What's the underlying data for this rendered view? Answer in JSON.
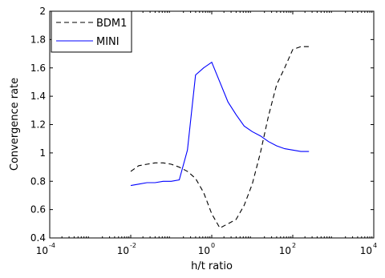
{
  "chart_data": {
    "type": "line",
    "title": "",
    "xlabel": "h/t ratio",
    "ylabel": "Convergence rate",
    "xscale": "log",
    "xlim": [
      0.0001,
      10000
    ],
    "ylim": [
      0.4,
      2
    ],
    "grid": false,
    "legend_position": "top-left",
    "x_ticks": [
      {
        "base": "10",
        "exp": "-4",
        "value": 0.0001
      },
      {
        "base": "10",
        "exp": "-2",
        "value": 0.01
      },
      {
        "base": "10",
        "exp": "0",
        "value": 1
      },
      {
        "base": "10",
        "exp": "2",
        "value": 100
      },
      {
        "base": "10",
        "exp": "4",
        "value": 10000
      }
    ],
    "y_ticks": [
      "0.4",
      "0.6",
      "0.8",
      "1",
      "1.2",
      "1.4",
      "1.6",
      "1.8",
      "2"
    ],
    "x": [
      0.01,
      0.0158,
      0.0251,
      0.0398,
      0.0631,
      0.1,
      0.158,
      0.251,
      0.398,
      0.631,
      1.0,
      1.585,
      2.512,
      3.981,
      6.31,
      10.0,
      15.85,
      25.12,
      39.81,
      63.1,
      100.0,
      158.5,
      251.2
    ],
    "series": [
      {
        "name": "BDM1",
        "color": "#000000",
        "dash": "dashed",
        "values": [
          0.87,
          0.91,
          0.92,
          0.93,
          0.93,
          0.92,
          0.9,
          0.87,
          0.82,
          0.72,
          0.57,
          0.47,
          0.5,
          0.53,
          0.63,
          0.78,
          1.0,
          1.26,
          1.48,
          1.6,
          1.73,
          1.75,
          1.75
        ]
      },
      {
        "name": "MINI",
        "color": "#0000ff",
        "dash": "solid",
        "values": [
          0.77,
          0.78,
          0.79,
          0.79,
          0.8,
          0.8,
          0.81,
          1.02,
          1.55,
          1.6,
          1.64,
          1.5,
          1.36,
          1.27,
          1.19,
          1.15,
          1.12,
          1.08,
          1.05,
          1.03,
          1.02,
          1.01,
          1.01
        ]
      }
    ]
  }
}
